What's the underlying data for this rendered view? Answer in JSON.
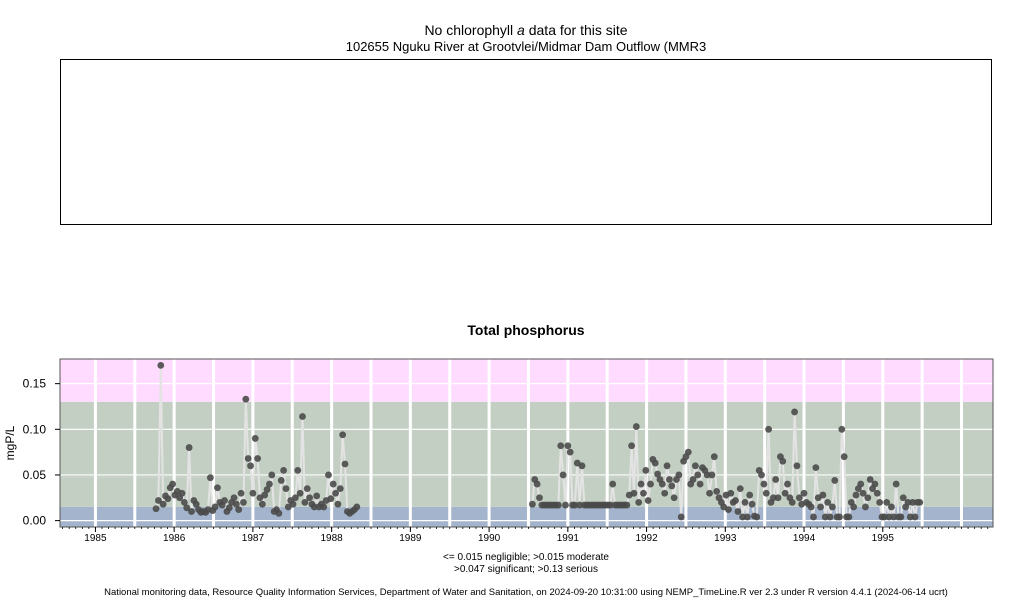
{
  "top_panel": {
    "title_prefix": "No chlorophyll",
    "title_italic": "a",
    "title_suffix": "data for this site",
    "subtitle": "102655 Nguku River at Grootvlei/Midmar Dam Outflow (MMR3"
  },
  "legend": {
    "line1": "<= 0.015 negligible; >0.015 moderate",
    "line2": ">0.047 significant; >0.13 serious"
  },
  "footer": "National monitoring data, Resource Quality Information Services, Department of Water and Sanitation, on 2024-09-20 10:31:00 using NEMP_TimeLine.R ver 2.3 under R version 4.4.1 (2024-06-14 ucrt)",
  "colors": {
    "negligible": "#a3b4cc",
    "moderate": "#c4cfc4",
    "significant": "#c4cfc4",
    "serious": "#ffdcff",
    "points": "#4a4a4a",
    "line": "#e3e3e3"
  },
  "chart_data": {
    "type": "scatter",
    "title": "Total phosphorus",
    "ylabel": "mgP/L",
    "xlabel": "",
    "xlim": [
      1984.55,
      1996.4
    ],
    "ylim": [
      -0.007,
      0.177
    ],
    "yticks": [
      0.0,
      0.05,
      0.1,
      0.15
    ],
    "ytick_labels": [
      "0.00",
      "0.05",
      "0.10",
      "0.15"
    ],
    "xticks": [
      1985,
      1986,
      1987,
      1988,
      1989,
      1990,
      1991,
      1992,
      1993,
      1994,
      1995
    ],
    "xtick_labels": [
      "1985",
      "1986",
      "1987",
      "1988",
      "1989",
      "1990",
      "1991",
      "1992",
      "1993",
      "1994",
      "1995"
    ],
    "thresholds": [
      {
        "label": "negligible",
        "from": -0.007,
        "to": 0.015
      },
      {
        "label": "moderate",
        "from": 0.015,
        "to": 0.047
      },
      {
        "label": "significant",
        "from": 0.047,
        "to": 0.13
      },
      {
        "label": "serious",
        "from": 0.13,
        "to": 0.177
      }
    ],
    "grid": true,
    "points": [
      [
        1985.77,
        0.013
      ],
      [
        1985.8,
        0.022
      ],
      [
        1985.83,
        0.17
      ],
      [
        1985.86,
        0.018
      ],
      [
        1985.89,
        0.027
      ],
      [
        1985.92,
        0.024
      ],
      [
        1985.95,
        0.036
      ],
      [
        1985.98,
        0.04
      ],
      [
        1986.01,
        0.028
      ],
      [
        1986.04,
        0.032
      ],
      [
        1986.07,
        0.025
      ],
      [
        1986.1,
        0.03
      ],
      [
        1986.13,
        0.02
      ],
      [
        1986.16,
        0.014
      ],
      [
        1986.19,
        0.08
      ],
      [
        1986.22,
        0.01
      ],
      [
        1986.25,
        0.022
      ],
      [
        1986.28,
        0.018
      ],
      [
        1986.31,
        0.012
      ],
      [
        1986.34,
        0.009
      ],
      [
        1986.37,
        0.01
      ],
      [
        1986.4,
        0.009
      ],
      [
        1986.43,
        0.012
      ],
      [
        1986.46,
        0.047
      ],
      [
        1986.49,
        0.011
      ],
      [
        1986.52,
        0.015
      ],
      [
        1986.55,
        0.036
      ],
      [
        1986.58,
        0.02
      ],
      [
        1986.61,
        0.017
      ],
      [
        1986.64,
        0.022
      ],
      [
        1986.67,
        0.01
      ],
      [
        1986.7,
        0.014
      ],
      [
        1986.73,
        0.02
      ],
      [
        1986.76,
        0.025
      ],
      [
        1986.79,
        0.018
      ],
      [
        1986.82,
        0.012
      ],
      [
        1986.85,
        0.03
      ],
      [
        1986.88,
        0.02
      ],
      [
        1986.91,
        0.133
      ],
      [
        1986.94,
        0.068
      ],
      [
        1986.97,
        0.06
      ],
      [
        1987.0,
        0.03
      ],
      [
        1987.03,
        0.09
      ],
      [
        1987.06,
        0.068
      ],
      [
        1987.09,
        0.025
      ],
      [
        1987.12,
        0.018
      ],
      [
        1987.15,
        0.028
      ],
      [
        1987.18,
        0.034
      ],
      [
        1987.21,
        0.04
      ],
      [
        1987.24,
        0.05
      ],
      [
        1987.27,
        0.01
      ],
      [
        1987.3,
        0.012
      ],
      [
        1987.33,
        0.008
      ],
      [
        1987.36,
        0.044
      ],
      [
        1987.39,
        0.055
      ],
      [
        1987.42,
        0.035
      ],
      [
        1987.45,
        0.015
      ],
      [
        1987.48,
        0.022
      ],
      [
        1987.51,
        0.018
      ],
      [
        1987.54,
        0.025
      ],
      [
        1987.57,
        0.055
      ],
      [
        1987.6,
        0.03
      ],
      [
        1987.63,
        0.114
      ],
      [
        1987.66,
        0.02
      ],
      [
        1987.69,
        0.035
      ],
      [
        1987.72,
        0.025
      ],
      [
        1987.75,
        0.018
      ],
      [
        1987.78,
        0.015
      ],
      [
        1987.81,
        0.027
      ],
      [
        1987.84,
        0.015
      ],
      [
        1987.87,
        0.018
      ],
      [
        1987.9,
        0.015
      ],
      [
        1987.93,
        0.022
      ],
      [
        1987.96,
        0.05
      ],
      [
        1987.99,
        0.024
      ],
      [
        1988.02,
        0.04
      ],
      [
        1988.05,
        0.03
      ],
      [
        1988.08,
        0.018
      ],
      [
        1988.11,
        0.035
      ],
      [
        1988.14,
        0.094
      ],
      [
        1988.17,
        0.062
      ],
      [
        1988.2,
        0.01
      ],
      [
        1988.23,
        0.008
      ],
      [
        1988.26,
        0.01
      ],
      [
        1988.29,
        0.012
      ],
      [
        1988.32,
        0.015
      ],
      [
        1990.55,
        0.018
      ],
      [
        1990.58,
        0.045
      ],
      [
        1990.61,
        0.04
      ],
      [
        1990.64,
        0.025
      ],
      [
        1990.67,
        0.017
      ],
      [
        1990.7,
        0.017
      ],
      [
        1990.73,
        0.017
      ],
      [
        1990.76,
        0.017
      ],
      [
        1990.79,
        0.017
      ],
      [
        1990.82,
        0.017
      ],
      [
        1990.85,
        0.017
      ],
      [
        1990.88,
        0.017
      ],
      [
        1990.91,
        0.082
      ],
      [
        1990.94,
        0.05
      ],
      [
        1990.97,
        0.017
      ],
      [
        1991.0,
        0.082
      ],
      [
        1991.03,
        0.075
      ],
      [
        1991.06,
        0.017
      ],
      [
        1991.09,
        0.017
      ],
      [
        1991.12,
        0.063
      ],
      [
        1991.15,
        0.017
      ],
      [
        1991.18,
        0.06
      ],
      [
        1991.21,
        0.017
      ],
      [
        1991.24,
        0.017
      ],
      [
        1991.27,
        0.017
      ],
      [
        1991.3,
        0.017
      ],
      [
        1991.33,
        0.017
      ],
      [
        1991.36,
        0.017
      ],
      [
        1991.39,
        0.017
      ],
      [
        1991.42,
        0.017
      ],
      [
        1991.45,
        0.017
      ],
      [
        1991.48,
        0.017
      ],
      [
        1991.51,
        0.017
      ],
      [
        1991.54,
        0.017
      ],
      [
        1991.57,
        0.04
      ],
      [
        1991.6,
        0.017
      ],
      [
        1991.63,
        0.017
      ],
      [
        1991.66,
        0.017
      ],
      [
        1991.69,
        0.017
      ],
      [
        1991.72,
        0.017
      ],
      [
        1991.75,
        0.017
      ],
      [
        1991.78,
        0.028
      ],
      [
        1991.81,
        0.082
      ],
      [
        1991.84,
        0.03
      ],
      [
        1991.87,
        0.103
      ],
      [
        1991.9,
        0.02
      ],
      [
        1991.93,
        0.04
      ],
      [
        1991.96,
        0.03
      ],
      [
        1991.99,
        0.055
      ],
      [
        1992.02,
        0.022
      ],
      [
        1992.05,
        0.04
      ],
      [
        1992.08,
        0.067
      ],
      [
        1992.11,
        0.063
      ],
      [
        1992.14,
        0.051
      ],
      [
        1992.17,
        0.045
      ],
      [
        1992.2,
        0.04
      ],
      [
        1992.23,
        0.03
      ],
      [
        1992.26,
        0.06
      ],
      [
        1992.29,
        0.045
      ],
      [
        1992.32,
        0.038
      ],
      [
        1992.35,
        0.025
      ],
      [
        1992.38,
        0.045
      ],
      [
        1992.41,
        0.05
      ],
      [
        1992.44,
        0.004
      ],
      [
        1992.47,
        0.065
      ],
      [
        1992.5,
        0.07
      ],
      [
        1992.53,
        0.075
      ],
      [
        1992.56,
        0.04
      ],
      [
        1992.59,
        0.045
      ],
      [
        1992.62,
        0.06
      ],
      [
        1992.65,
        0.05
      ],
      [
        1992.68,
        0.04
      ],
      [
        1992.71,
        0.058
      ],
      [
        1992.74,
        0.055
      ],
      [
        1992.77,
        0.05
      ],
      [
        1992.8,
        0.03
      ],
      [
        1992.83,
        0.05
      ],
      [
        1992.86,
        0.07
      ],
      [
        1992.89,
        0.032
      ],
      [
        1992.92,
        0.025
      ],
      [
        1992.95,
        0.02
      ],
      [
        1992.98,
        0.015
      ],
      [
        1993.01,
        0.028
      ],
      [
        1993.04,
        0.012
      ],
      [
        1993.07,
        0.03
      ],
      [
        1993.1,
        0.02
      ],
      [
        1993.13,
        0.022
      ],
      [
        1993.16,
        0.01
      ],
      [
        1993.19,
        0.035
      ],
      [
        1993.22,
        0.004
      ],
      [
        1993.25,
        0.02
      ],
      [
        1993.28,
        0.004
      ],
      [
        1993.31,
        0.028
      ],
      [
        1993.34,
        0.018
      ],
      [
        1993.37,
        0.005
      ],
      [
        1993.4,
        0.004
      ],
      [
        1993.43,
        0.055
      ],
      [
        1993.46,
        0.05
      ],
      [
        1993.49,
        0.04
      ],
      [
        1993.52,
        0.03
      ],
      [
        1993.55,
        0.1
      ],
      [
        1993.58,
        0.02
      ],
      [
        1993.61,
        0.025
      ],
      [
        1993.64,
        0.045
      ],
      [
        1993.67,
        0.025
      ],
      [
        1993.7,
        0.07
      ],
      [
        1993.73,
        0.065
      ],
      [
        1993.76,
        0.03
      ],
      [
        1993.79,
        0.04
      ],
      [
        1993.82,
        0.025
      ],
      [
        1993.85,
        0.02
      ],
      [
        1993.88,
        0.119
      ],
      [
        1993.91,
        0.06
      ],
      [
        1993.94,
        0.025
      ],
      [
        1993.97,
        0.018
      ],
      [
        1994.0,
        0.03
      ],
      [
        1994.03,
        0.02
      ],
      [
        1994.06,
        0.018
      ],
      [
        1994.09,
        0.015
      ],
      [
        1994.12,
        0.004
      ],
      [
        1994.15,
        0.058
      ],
      [
        1994.18,
        0.025
      ],
      [
        1994.21,
        0.015
      ],
      [
        1994.24,
        0.028
      ],
      [
        1994.27,
        0.004
      ],
      [
        1994.3,
        0.02
      ],
      [
        1994.33,
        0.004
      ],
      [
        1994.36,
        0.015
      ],
      [
        1994.39,
        0.044
      ],
      [
        1994.42,
        0.004
      ],
      [
        1994.45,
        0.004
      ],
      [
        1994.48,
        0.1
      ],
      [
        1994.51,
        0.07
      ],
      [
        1994.54,
        0.004
      ],
      [
        1994.57,
        0.004
      ],
      [
        1994.6,
        0.02
      ],
      [
        1994.63,
        0.015
      ],
      [
        1994.66,
        0.028
      ],
      [
        1994.69,
        0.035
      ],
      [
        1994.72,
        0.04
      ],
      [
        1994.75,
        0.03
      ],
      [
        1994.78,
        0.015
      ],
      [
        1994.81,
        0.025
      ],
      [
        1994.84,
        0.045
      ],
      [
        1994.87,
        0.035
      ],
      [
        1994.9,
        0.04
      ],
      [
        1994.93,
        0.03
      ],
      [
        1994.96,
        0.02
      ],
      [
        1994.99,
        0.004
      ],
      [
        1995.02,
        0.004
      ],
      [
        1995.05,
        0.02
      ],
      [
        1995.08,
        0.004
      ],
      [
        1995.11,
        0.015
      ],
      [
        1995.14,
        0.004
      ],
      [
        1995.17,
        0.04
      ],
      [
        1995.2,
        0.004
      ],
      [
        1995.23,
        0.004
      ],
      [
        1995.26,
        0.025
      ],
      [
        1995.29,
        0.015
      ],
      [
        1995.32,
        0.02
      ],
      [
        1995.35,
        0.004
      ],
      [
        1995.38,
        0.02
      ],
      [
        1995.41,
        0.004
      ],
      [
        1995.44,
        0.02
      ],
      [
        1995.47,
        0.02
      ]
    ]
  }
}
